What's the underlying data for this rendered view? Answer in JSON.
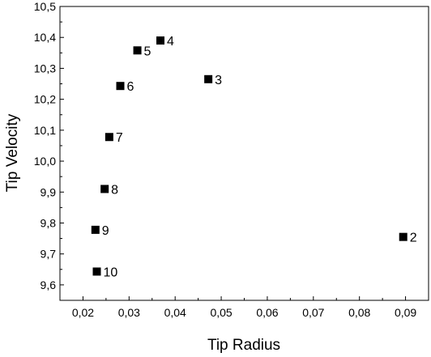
{
  "chart_data": {
    "type": "scatter",
    "title": "",
    "xlabel": "Tip Radius",
    "ylabel": "Tip Velocity",
    "xlim": [
      0.015,
      0.095
    ],
    "ylim": [
      9.55,
      10.5
    ],
    "x_ticks": [
      0.02,
      0.03,
      0.04,
      0.05,
      0.06,
      0.07,
      0.08,
      0.09
    ],
    "x_tick_labels": [
      "0,02",
      "0,03",
      "0,04",
      "0,05",
      "0,06",
      "0,07",
      "0,08",
      "0,09"
    ],
    "y_ticks": [
      9.6,
      9.7,
      9.8,
      9.9,
      10.0,
      10.1,
      10.2,
      10.3,
      10.4,
      10.5
    ],
    "y_tick_labels": [
      "9,6",
      "9,7",
      "9,8",
      "9,9",
      "10,0",
      "10,1",
      "10,2",
      "10,3",
      "10,4",
      "10,5"
    ],
    "grid": false,
    "marker": "square",
    "marker_color": "#000000",
    "points": [
      {
        "label": "2",
        "x": 0.0895,
        "y": 9.755
      },
      {
        "label": "3",
        "x": 0.0472,
        "y": 10.265
      },
      {
        "label": "4",
        "x": 0.0368,
        "y": 10.39
      },
      {
        "label": "5",
        "x": 0.0318,
        "y": 10.358
      },
      {
        "label": "6",
        "x": 0.0281,
        "y": 10.243
      },
      {
        "label": "7",
        "x": 0.0257,
        "y": 10.078
      },
      {
        "label": "8",
        "x": 0.0247,
        "y": 9.91
      },
      {
        "label": "9",
        "x": 0.0227,
        "y": 9.778
      },
      {
        "label": "10",
        "x": 0.023,
        "y": 9.643
      }
    ]
  }
}
